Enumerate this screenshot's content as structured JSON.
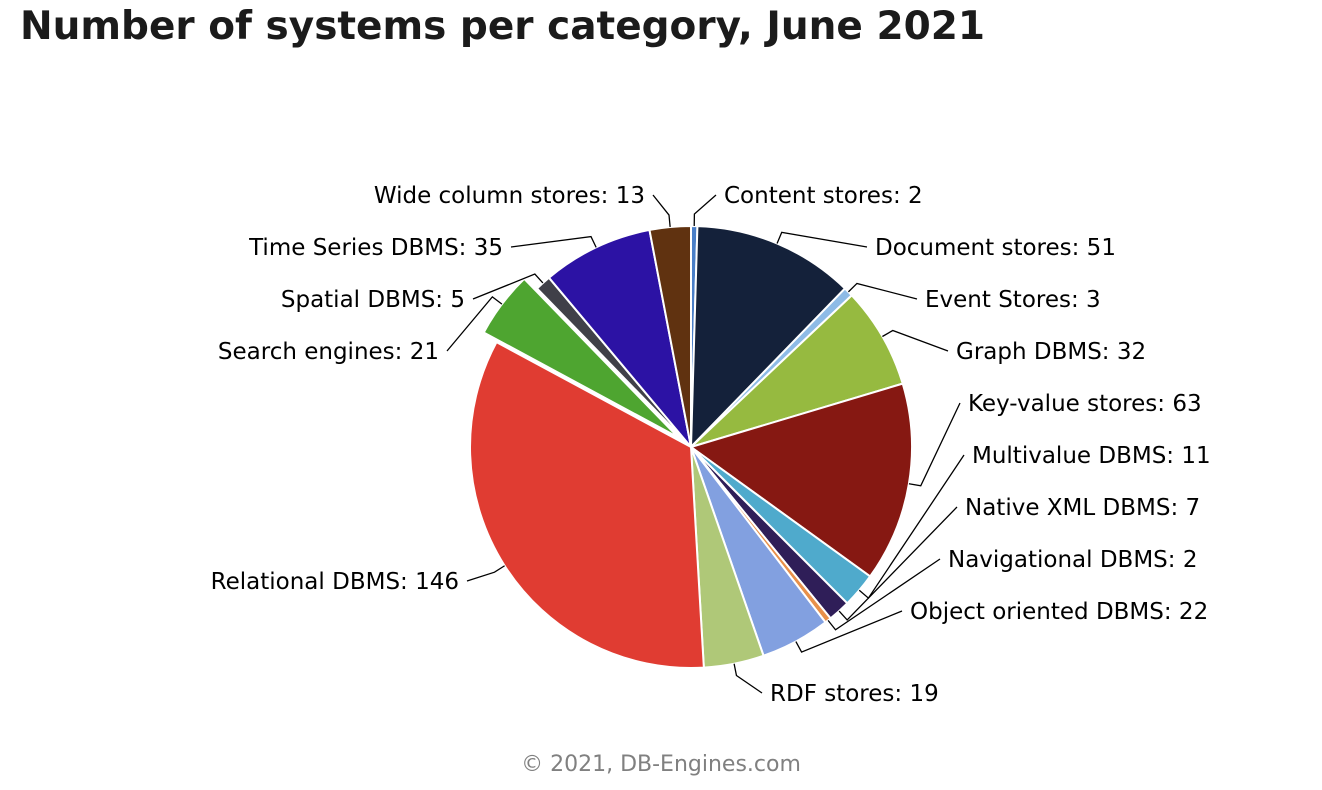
{
  "chart_data": {
    "type": "pie",
    "title": "Number of systems per category, June 2021",
    "credit": "© 2021, DB-Engines.com",
    "slices": [
      {
        "name": "Content stores",
        "value": 2,
        "color": "#4a7fc8"
      },
      {
        "name": "Document stores",
        "value": 51,
        "color": "#14213a"
      },
      {
        "name": "Event Stores",
        "value": 3,
        "color": "#8ebbe6"
      },
      {
        "name": "Graph DBMS",
        "value": 32,
        "color": "#96ba40"
      },
      {
        "name": "Key-value stores",
        "value": 63,
        "color": "#861812"
      },
      {
        "name": "Multivalue DBMS",
        "value": 11,
        "color": "#4faacc"
      },
      {
        "name": "Native XML DBMS",
        "value": 7,
        "color": "#2f1e58"
      },
      {
        "name": "Navigational DBMS",
        "value": 2,
        "color": "#e8904a"
      },
      {
        "name": "Object oriented DBMS",
        "value": 22,
        "color": "#82a0e0"
      },
      {
        "name": "RDF stores",
        "value": 19,
        "color": "#afc878"
      },
      {
        "name": "Relational DBMS",
        "value": 146,
        "color": "#e03c32"
      },
      {
        "name": "Search engines",
        "value": 21,
        "color": "#4ea530"
      },
      {
        "name": "Spatial DBMS",
        "value": 5,
        "color": "#404048"
      },
      {
        "name": "Time Series DBMS",
        "value": 35,
        "color": "#2c12a4"
      },
      {
        "name": "Wide column stores",
        "value": 13,
        "color": "#603210"
      }
    ]
  }
}
